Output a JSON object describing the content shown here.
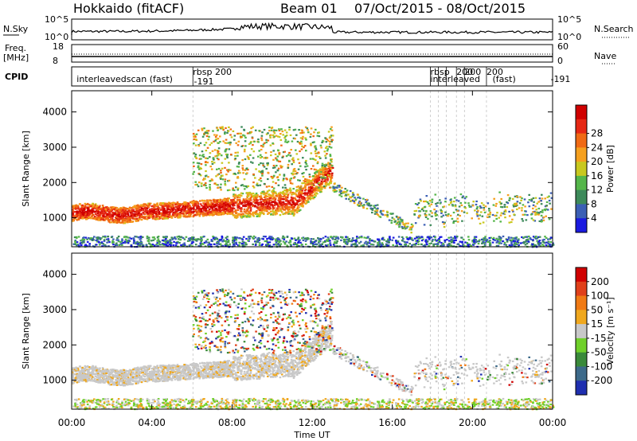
{
  "header": {
    "title": "Hokkaido (fitACF)",
    "beam": "Beam 01",
    "date_range": "07/Oct/2015 - 08/Oct/2015"
  },
  "strip": {
    "nsky_label": "N.Sky",
    "nsky_ticks": [
      "10^5",
      "10^0"
    ],
    "nsearch_label": "N.Search",
    "nsearch_ticks": [
      "10^5",
      "10^0"
    ],
    "freq_label": "Freq.",
    "freq_unit": "[MHz]",
    "freq_ticks": [
      "18",
      "8"
    ],
    "nave_label": "Nave",
    "nave_ticks": [
      "60",
      "0"
    ],
    "cpid_label": "CPID"
  },
  "cpid_segments": [
    {
      "time": 0.25,
      "text": "interleavedscan (fast)"
    },
    {
      "time": 6.1,
      "text": "-191"
    },
    {
      "time": 6.05,
      "text": "rbsp 200"
    },
    {
      "time": 17.9,
      "text": "rbsp"
    },
    {
      "time": 17.9,
      "text": "interleaved"
    },
    {
      "time": 19.2,
      "text": "200"
    },
    {
      "time": 19.6,
      "text": "200"
    },
    {
      "time": 20.7,
      "text": "200"
    },
    {
      "time": 21.0,
      "text": "(fast)"
    },
    {
      "time": 23.9,
      "text": "-191"
    }
  ],
  "chart_data": [
    {
      "type": "heatmap",
      "ylabel": "Slant Range [km]",
      "xlim": [
        "00:00",
        "24:00"
      ],
      "ylim": [
        180,
        4600
      ],
      "yticks": [
        "1000",
        "2000",
        "3000",
        "4000"
      ],
      "colorbar_label": "Power [dB]",
      "colorbar_ticks": [
        "4",
        "8",
        "12",
        "16",
        "20",
        "24",
        "28"
      ],
      "colorbar_colors": [
        "#1a1ae0",
        "#3b5fb5",
        "#3d8a5a",
        "#55b64a",
        "#c8c81e",
        "#f5a01e",
        "#f06a14",
        "#e62814",
        "#d00000"
      ]
    },
    {
      "type": "heatmap",
      "ylabel": "Slant Range [km]",
      "xlabel": "Time UT",
      "xlim": [
        "00:00",
        "24:00"
      ],
      "ylim": [
        180,
        4600
      ],
      "yticks": [
        "1000",
        "2000",
        "3000",
        "4000"
      ],
      "xticks": [
        "00:00",
        "04:00",
        "08:00",
        "12:00",
        "16:00",
        "20:00",
        "00:00"
      ],
      "colorbar_label": "Velocity [m s⁻¹]",
      "colorbar_ticks": [
        "200",
        "100",
        "50",
        "15",
        "-15",
        "-50",
        "-100",
        "-200"
      ],
      "colorbar_colors": [
        "#1f2fb0",
        "#3d6a8a",
        "#3a8a3a",
        "#6fd02a",
        "#c8c8c8",
        "#f0a81e",
        "#f07a14",
        "#e0401a",
        "#d00000"
      ]
    }
  ]
}
